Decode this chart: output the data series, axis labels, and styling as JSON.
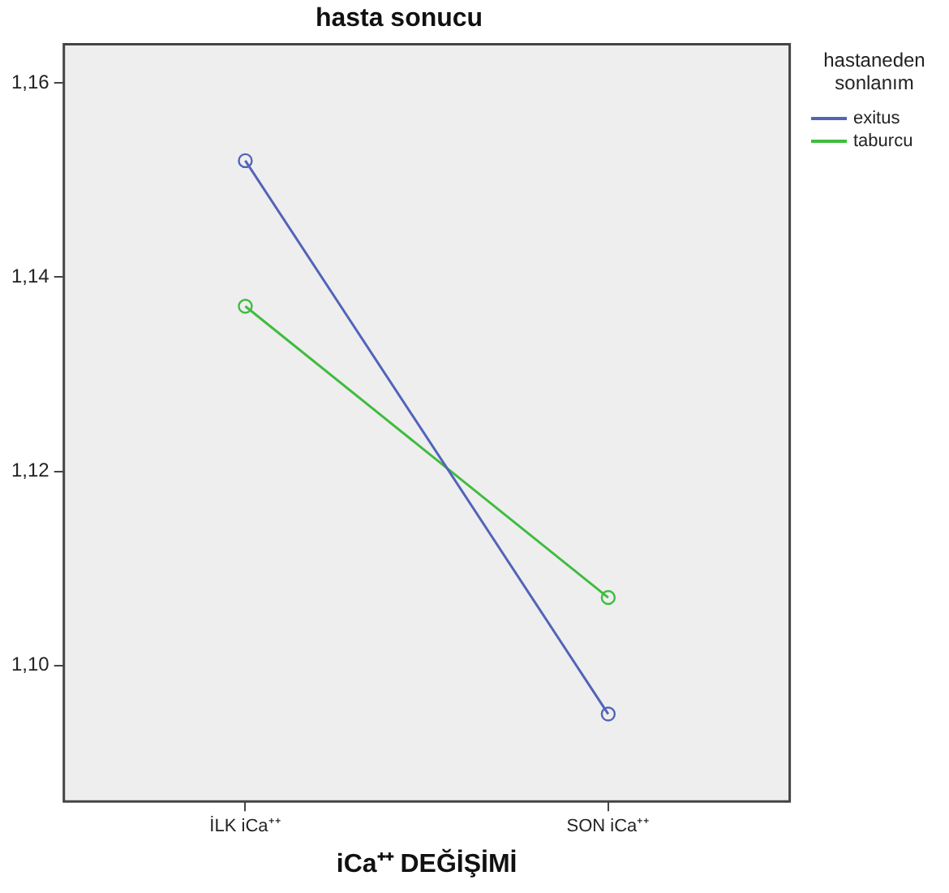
{
  "chart_data": {
    "type": "line",
    "title": "hasta sonucu",
    "xlabel": "iCa⁺⁺ DEĞİŞİMİ",
    "legend_title": "hastaneden sonlanım",
    "categories": [
      "İLK iCa⁺⁺",
      "SON iCa⁺⁺"
    ],
    "series": [
      {
        "name": "exitus",
        "color": "#5264b9",
        "values": [
          1.152,
          1.095
        ]
      },
      {
        "name": "taburcu",
        "color": "#3fbc3f",
        "values": [
          1.137,
          1.107
        ]
      }
    ],
    "ylim": [
      1.086,
      1.164
    ],
    "yticks": [
      {
        "value": 1.1,
        "label": "1,10"
      },
      {
        "value": 1.12,
        "label": "1,12"
      },
      {
        "value": 1.14,
        "label": "1,14"
      },
      {
        "value": 1.16,
        "label": "1,16"
      }
    ],
    "grid": false,
    "legend": "top right",
    "marker": "circle",
    "line_style": "solid"
  }
}
